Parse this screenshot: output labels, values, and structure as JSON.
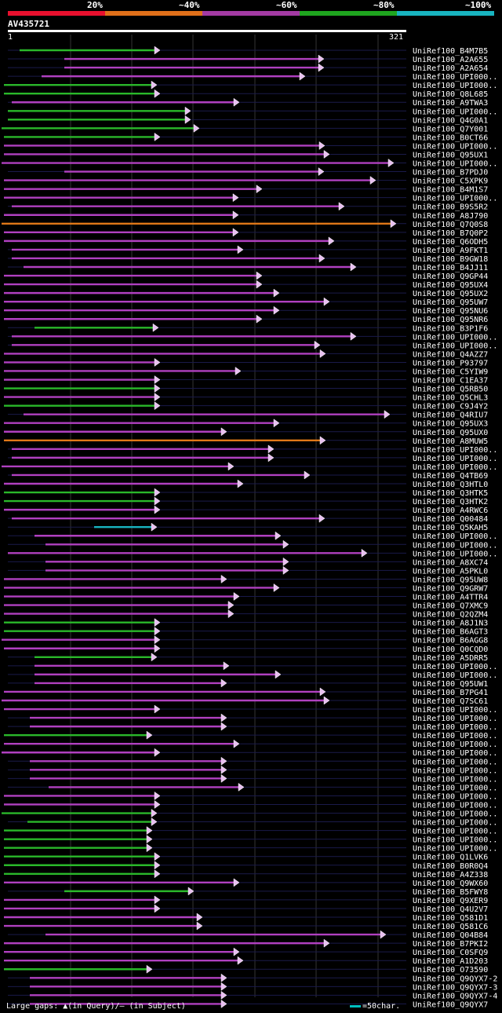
{
  "legend": [
    {
      "label": "20%",
      "color": "#e8102e"
    },
    {
      "label": "~40%",
      "color": "#e0701a"
    },
    {
      "label": "~60%",
      "color": "#a33aa3"
    },
    {
      "label": "~80%",
      "color": "#1fa51f"
    },
    {
      "label": "~100%",
      "color": "#18b4c0"
    }
  ],
  "query": {
    "id": "AV435721",
    "start": "1",
    "end": "321"
  },
  "hits": [
    {
      "name": "UniRef100_B4M7B5",
      "s": 25,
      "e": 202,
      "c": "g"
    },
    {
      "name": "UniRef100_A2A655",
      "s": 82,
      "e": 411,
      "c": "m"
    },
    {
      "name": "UniRef100_A2A654",
      "s": 82,
      "e": 411,
      "c": "m"
    },
    {
      "name": "UniRef100_UPI000..",
      "s": 53,
      "e": 387,
      "c": "m"
    },
    {
      "name": "UniRef100_UPI000..",
      "s": 5,
      "e": 198,
      "c": "g"
    },
    {
      "name": "UniRef100_Q8L685",
      "s": 5,
      "e": 202,
      "c": "g"
    },
    {
      "name": "UniRef100_A9TWA3",
      "s": 15,
      "e": 303,
      "c": "m"
    },
    {
      "name": "UniRef100_UPI000..",
      "s": 10,
      "e": 241,
      "c": "g"
    },
    {
      "name": "UniRef100_Q4G0A1",
      "s": 10,
      "e": 241,
      "c": "g"
    },
    {
      "name": "UniRef100_Q7Y001",
      "s": 2,
      "e": 252,
      "c": "g"
    },
    {
      "name": "UniRef100_B0CT66",
      "s": 5,
      "e": 202,
      "c": "g"
    },
    {
      "name": "UniRef100_UPI000..",
      "s": 5,
      "e": 412,
      "c": "m"
    },
    {
      "name": "UniRef100_Q95UX1",
      "s": 5,
      "e": 418,
      "c": "m"
    },
    {
      "name": "UniRef100_UPI000..",
      "s": 2,
      "e": 500,
      "c": "m"
    },
    {
      "name": "UniRef100_B7PDJ0",
      "s": 82,
      "e": 411,
      "c": "m"
    },
    {
      "name": "UniRef100_C5XPK9",
      "s": 5,
      "e": 477,
      "c": "m"
    },
    {
      "name": "UniRef100_B4M1S7",
      "s": 5,
      "e": 332,
      "c": "m"
    },
    {
      "name": "UniRef100_UPI000..",
      "s": 5,
      "e": 302,
      "c": "m"
    },
    {
      "name": "UniRef100_B9S5R2",
      "s": 15,
      "e": 437,
      "c": "m"
    },
    {
      "name": "UniRef100_A8J790",
      "s": 5,
      "e": 302,
      "c": "m"
    },
    {
      "name": "UniRef100_Q7Q0S8",
      "s": 2,
      "e": 503,
      "c": "o"
    },
    {
      "name": "UniRef100_B7Q0P2",
      "s": 5,
      "e": 302,
      "c": "m"
    },
    {
      "name": "UniRef100_Q6ODH5",
      "s": 5,
      "e": 424,
      "c": "m"
    },
    {
      "name": "UniRef100_A9FKT1",
      "s": 15,
      "e": 308,
      "c": "m"
    },
    {
      "name": "UniRef100_B9GW18",
      "s": 15,
      "e": 412,
      "c": "m"
    },
    {
      "name": "UniRef100_B4JJ11",
      "s": 30,
      "e": 452,
      "c": "m"
    },
    {
      "name": "UniRef100_Q9GP44",
      "s": 5,
      "e": 332,
      "c": "m"
    },
    {
      "name": "UniRef100_Q95UX4",
      "s": 5,
      "e": 332,
      "c": "m"
    },
    {
      "name": "UniRef100_Q95UX2",
      "s": 5,
      "e": 354,
      "c": "m"
    },
    {
      "name": "UniRef100_Q95UW7",
      "s": 5,
      "e": 418,
      "c": "m"
    },
    {
      "name": "UniRef100_Q95NU6",
      "s": 5,
      "e": 354,
      "c": "m"
    },
    {
      "name": "UniRef100_Q95NR6",
      "s": 5,
      "e": 332,
      "c": "m"
    },
    {
      "name": "UniRef100_B3P1F6",
      "s": 44,
      "e": 200,
      "c": "g"
    },
    {
      "name": "UniRef100_UPI000..",
      "s": 15,
      "e": 452,
      "c": "m"
    },
    {
      "name": "UniRef100_UPI000..",
      "s": 15,
      "e": 406,
      "c": "m"
    },
    {
      "name": "UniRef100_Q4AZZ7",
      "s": 5,
      "e": 413,
      "c": "m"
    },
    {
      "name": "UniRef100_P93797",
      "s": 5,
      "e": 202,
      "c": "m"
    },
    {
      "name": "UniRef100_C5YIW9",
      "s": 5,
      "e": 305,
      "c": "m"
    },
    {
      "name": "UniRef100_C1EA37",
      "s": 5,
      "e": 202,
      "c": "m"
    },
    {
      "name": "UniRef100_Q5RB50",
      "s": 5,
      "e": 202,
      "c": "g"
    },
    {
      "name": "UniRef100_Q5CHL3",
      "s": 5,
      "e": 202,
      "c": "m"
    },
    {
      "name": "UniRef100_C9J4Y2",
      "s": 5,
      "e": 202,
      "c": "g"
    },
    {
      "name": "UniRef100_Q4RIU7",
      "s": 30,
      "e": 495,
      "c": "m"
    },
    {
      "name": "UniRef100_Q95UX3",
      "s": 5,
      "e": 354,
      "c": "m"
    },
    {
      "name": "UniRef100_Q95UX0",
      "s": 5,
      "e": 287,
      "c": "m"
    },
    {
      "name": "UniRef100_A8MUW5",
      "s": 5,
      "e": 413,
      "c": "o"
    },
    {
      "name": "UniRef100_UPI000..",
      "s": 15,
      "e": 347,
      "c": "m"
    },
    {
      "name": "UniRef100_UPI000..",
      "s": 15,
      "e": 347,
      "c": "m"
    },
    {
      "name": "UniRef100_UPI000..",
      "s": 2,
      "e": 296,
      "c": "m"
    },
    {
      "name": "UniRef100_Q4TB69",
      "s": 15,
      "e": 393,
      "c": "m"
    },
    {
      "name": "UniRef100_Q3HTL0",
      "s": 5,
      "e": 308,
      "c": "m"
    },
    {
      "name": "UniRef100_Q3HTK5",
      "s": 5,
      "e": 202,
      "c": "g"
    },
    {
      "name": "UniRef100_Q3HTK2",
      "s": 5,
      "e": 202,
      "c": "g"
    },
    {
      "name": "UniRef100_A4RWC6",
      "s": 5,
      "e": 202,
      "c": "m"
    },
    {
      "name": "UniRef100_Q00484",
      "s": 15,
      "e": 412,
      "c": "m"
    },
    {
      "name": "UniRef100_Q5KAH5",
      "s": 120,
      "e": 198,
      "c": "c"
    },
    {
      "name": "UniRef100_UPI000..",
      "s": 44,
      "e": 356,
      "c": "m"
    },
    {
      "name": "UniRef100_UPI000..",
      "s": 58,
      "e": 366,
      "c": "m"
    },
    {
      "name": "UniRef100_UPI000..",
      "s": 10,
      "e": 466,
      "c": "m"
    },
    {
      "name": "UniRef100_A8XC74",
      "s": 58,
      "e": 366,
      "c": "m"
    },
    {
      "name": "UniRef100_A5PKL0",
      "s": 58,
      "e": 366,
      "c": "m"
    },
    {
      "name": "UniRef100_Q95UW8",
      "s": 5,
      "e": 287,
      "c": "m"
    },
    {
      "name": "UniRef100_Q9GRW7",
      "s": 5,
      "e": 354,
      "c": "m"
    },
    {
      "name": "UniRef100_A4TTR4",
      "s": 5,
      "e": 303,
      "c": "m"
    },
    {
      "name": "UniRef100_Q7XMC9",
      "s": 5,
      "e": 296,
      "c": "m"
    },
    {
      "name": "UniRef100_Q2QZM4",
      "s": 5,
      "e": 296,
      "c": "m"
    },
    {
      "name": "UniRef100_A8J1N3",
      "s": 5,
      "e": 202,
      "c": "g"
    },
    {
      "name": "UniRef100_B6AGT3",
      "s": 5,
      "e": 202,
      "c": "g"
    },
    {
      "name": "UniRef100_B6AGG8",
      "s": 2,
      "e": 202,
      "c": "m"
    },
    {
      "name": "UniRef100_Q0CQD0",
      "s": 5,
      "e": 202,
      "c": "m"
    },
    {
      "name": "UniRef100_A5DRR5",
      "s": 44,
      "e": 198,
      "c": "g"
    },
    {
      "name": "UniRef100_UPI000..",
      "s": 44,
      "e": 290,
      "c": "m"
    },
    {
      "name": "UniRef100_UPI000..",
      "s": 44,
      "e": 356,
      "c": "m"
    },
    {
      "name": "UniRef100_Q95UW1",
      "s": 44,
      "e": 287,
      "c": "m"
    },
    {
      "name": "UniRef100_B7PG41",
      "s": 5,
      "e": 413,
      "c": "m"
    },
    {
      "name": "UniRef100_Q7SC61",
      "s": 2,
      "e": 418,
      "c": "m"
    },
    {
      "name": "UniRef100_UPI000..",
      "s": 5,
      "e": 202,
      "c": "m"
    },
    {
      "name": "UniRef100_UPI000..",
      "s": 38,
      "e": 287,
      "c": "m"
    },
    {
      "name": "UniRef100_UPI000..",
      "s": 38,
      "e": 287,
      "c": "m"
    },
    {
      "name": "UniRef100_UPI000..",
      "s": 5,
      "e": 192,
      "c": "g"
    },
    {
      "name": "UniRef100_UPI000..",
      "s": 5,
      "e": 303,
      "c": "m"
    },
    {
      "name": "UniRef100_UPI000..",
      "s": 2,
      "e": 202,
      "c": "m"
    },
    {
      "name": "UniRef100_UPI000..",
      "s": 38,
      "e": 287,
      "c": "m"
    },
    {
      "name": "UniRef100_UPI000..",
      "s": 38,
      "e": 287,
      "c": "m"
    },
    {
      "name": "UniRef100_UPI000..",
      "s": 38,
      "e": 287,
      "c": "m"
    },
    {
      "name": "UniRef100_UPI000..",
      "s": 62,
      "e": 309,
      "c": "m"
    },
    {
      "name": "UniRef100_UPI000..",
      "s": 5,
      "e": 202,
      "c": "m"
    },
    {
      "name": "UniRef100_UPI000..",
      "s": 5,
      "e": 202,
      "c": "m"
    },
    {
      "name": "UniRef100_UPI000..",
      "s": 2,
      "e": 198,
      "c": "g"
    },
    {
      "name": "UniRef100_UPI000..",
      "s": 35,
      "e": 198,
      "c": "g"
    },
    {
      "name": "UniRef100_UPI000..",
      "s": 5,
      "e": 192,
      "c": "g"
    },
    {
      "name": "UniRef100_UPI000..",
      "s": 5,
      "e": 192,
      "c": "g"
    },
    {
      "name": "UniRef100_UPI000..",
      "s": 5,
      "e": 192,
      "c": "g"
    },
    {
      "name": "UniRef100_Q1LVK6",
      "s": 5,
      "e": 202,
      "c": "g"
    },
    {
      "name": "UniRef100_B0R0Q4",
      "s": 5,
      "e": 202,
      "c": "g"
    },
    {
      "name": "UniRef100_A4Z338",
      "s": 5,
      "e": 202,
      "c": "g"
    },
    {
      "name": "UniRef100_Q9WX60",
      "s": 5,
      "e": 303,
      "c": "m"
    },
    {
      "name": "UniRef100_B5FWY8",
      "s": 82,
      "e": 245,
      "c": "g"
    },
    {
      "name": "UniRef100_Q9XER9",
      "s": 5,
      "e": 202,
      "c": "m"
    },
    {
      "name": "UniRef100_Q4U2V7",
      "s": 5,
      "e": 202,
      "c": "m"
    },
    {
      "name": "UniRef100_Q581D1",
      "s": 5,
      "e": 256,
      "c": "m"
    },
    {
      "name": "UniRef100_Q581C6",
      "s": 5,
      "e": 256,
      "c": "m"
    },
    {
      "name": "UniRef100_Q04B84",
      "s": 58,
      "e": 490,
      "c": "m"
    },
    {
      "name": "UniRef100_B7PKI2",
      "s": 5,
      "e": 418,
      "c": "m"
    },
    {
      "name": "UniRef100_C0SFQ9",
      "s": 5,
      "e": 303,
      "c": "m"
    },
    {
      "name": "UniRef100_A1D203",
      "s": 5,
      "e": 308,
      "c": "m"
    },
    {
      "name": "UniRef100_O73590",
      "s": 5,
      "e": 192,
      "c": "g"
    },
    {
      "name": "UniRef100_Q9QYX7-2",
      "s": 38,
      "e": 287,
      "c": "m"
    },
    {
      "name": "UniRef100_Q9QYX7-3",
      "s": 38,
      "e": 287,
      "c": "m"
    },
    {
      "name": "UniRef100_Q9QYX7-4",
      "s": 38,
      "e": 287,
      "c": "m"
    },
    {
      "name": "UniRef100_Q9QYX7",
      "s": 38,
      "e": 287,
      "c": "m"
    }
  ],
  "footer": {
    "gaps_text": "Large gaps: ▲(in Query)/— (in Subject)",
    "scale_text": "=50char."
  }
}
